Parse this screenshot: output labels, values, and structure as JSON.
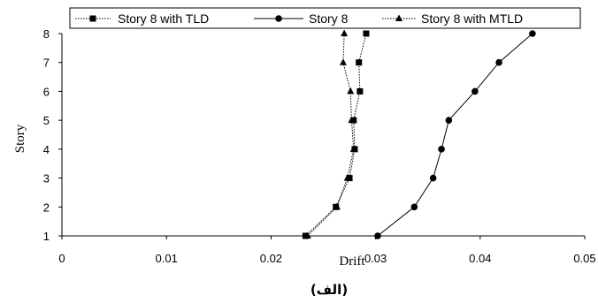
{
  "chart_data": {
    "type": "line",
    "xlabel": "Drift",
    "ylabel": "Story",
    "xlim": [
      0,
      0.05
    ],
    "ylim": [
      1,
      8
    ],
    "x_ticks": [
      "0",
      "0.01",
      "0.02",
      "0.03",
      "0.04",
      "0.05"
    ],
    "y_ticks": [
      "1",
      "2",
      "3",
      "4",
      "5",
      "6",
      "7",
      "8"
    ],
    "grid": false,
    "legend_position": "top",
    "caption": "(الف)",
    "series": [
      {
        "name": "Story 8 with TLD",
        "marker": "square",
        "line_style": "dotted",
        "color": "#000000",
        "points": [
          {
            "x": 0.0233,
            "y": 1
          },
          {
            "x": 0.0262,
            "y": 2
          },
          {
            "x": 0.0275,
            "y": 3
          },
          {
            "x": 0.028,
            "y": 4
          },
          {
            "x": 0.0279,
            "y": 5
          },
          {
            "x": 0.0285,
            "y": 6
          },
          {
            "x": 0.0284,
            "y": 7
          },
          {
            "x": 0.0291,
            "y": 8
          }
        ]
      },
      {
        "name": "Story 8",
        "marker": "circle",
        "line_style": "solid",
        "color": "#000000",
        "points": [
          {
            "x": 0.0302,
            "y": 1
          },
          {
            "x": 0.0337,
            "y": 2
          },
          {
            "x": 0.0355,
            "y": 3
          },
          {
            "x": 0.0363,
            "y": 4
          },
          {
            "x": 0.037,
            "y": 5
          },
          {
            "x": 0.0395,
            "y": 6
          },
          {
            "x": 0.0418,
            "y": 7
          },
          {
            "x": 0.045,
            "y": 8
          }
        ]
      },
      {
        "name": "Story 8 with MTLD",
        "marker": "triangle",
        "line_style": "dotted",
        "color": "#000000",
        "points": [
          {
            "x": 0.0235,
            "y": 1
          },
          {
            "x": 0.0263,
            "y": 2
          },
          {
            "x": 0.0273,
            "y": 3
          },
          {
            "x": 0.0279,
            "y": 4
          },
          {
            "x": 0.0277,
            "y": 5
          },
          {
            "x": 0.0276,
            "y": 6
          },
          {
            "x": 0.0269,
            "y": 7
          },
          {
            "x": 0.027,
            "y": 8
          }
        ]
      }
    ]
  }
}
